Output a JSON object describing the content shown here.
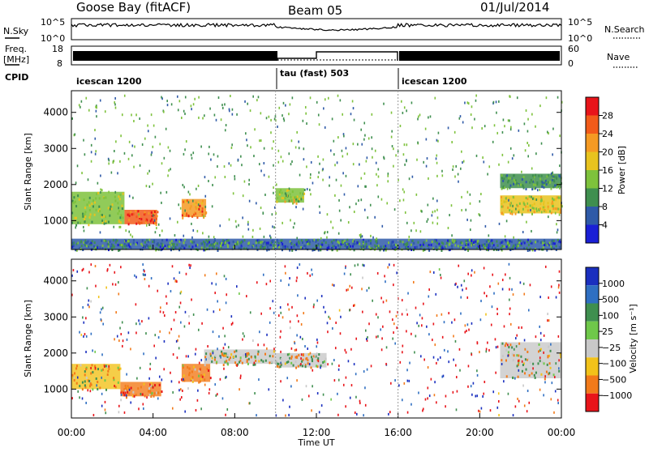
{
  "header": {
    "station": "Goose Bay (fitACF)",
    "beam": "Beam 05",
    "date": "01/Jul/2014"
  },
  "aux_panels": {
    "nsky_label": "N.Sky",
    "nsearch_label": "N.Search",
    "nsky_ticks": [
      "10^5",
      "10^0"
    ],
    "nsearch_ticks": [
      "10^5",
      "10^0"
    ],
    "freq_label_1": "Freq.",
    "freq_label_2": "[MHz]",
    "freq_ticks": [
      "18",
      "8"
    ],
    "nave_label": "Nave",
    "nave_ticks": [
      "60",
      "0"
    ],
    "cpid_label": "CPID",
    "cpid_segments": [
      {
        "label": "icescan 1200",
        "start": "00:00",
        "end": "10:00"
      },
      {
        "label": "tau (fast) 503",
        "start": "10:00",
        "end": "16:00"
      },
      {
        "label": "icescan 1200",
        "start": "16:00",
        "end": "24:00"
      }
    ]
  },
  "chart_data": [
    {
      "type": "heatmap",
      "title": "",
      "xlabel": "",
      "ylabel": "Slant Range [km]",
      "ylim": [
        200,
        4600
      ],
      "yticks": [
        "1000",
        "2000",
        "3000",
        "4000"
      ],
      "colorbar_label": "Power [dB]",
      "colorbar_ticks": [
        "28",
        "24",
        "20",
        "16",
        "12",
        "8",
        "4"
      ],
      "colorbar_colors": [
        "#e8141a",
        "#f25b1a",
        "#f59a23",
        "#e8c31e",
        "#7ec23c",
        "#3f8f4f",
        "#2f5aa8",
        "#1a1fd6"
      ],
      "regions": [
        {
          "start_h": 0.0,
          "end_h": 2.6,
          "range_km": [
            900,
            1800
          ],
          "dB": 12
        },
        {
          "start_h": 2.6,
          "end_h": 4.2,
          "range_km": [
            900,
            1300
          ],
          "dB": 24
        },
        {
          "start_h": 5.4,
          "end_h": 6.6,
          "range_km": [
            1100,
            1600
          ],
          "dB": 22
        },
        {
          "start_h": 10.0,
          "end_h": 11.4,
          "range_km": [
            1500,
            1900
          ],
          "dB": 14
        },
        {
          "start_h": 21.0,
          "end_h": 24.0,
          "range_km": [
            1200,
            1700
          ],
          "dB": 16
        },
        {
          "start_h": 21.0,
          "end_h": 24.0,
          "range_km": [
            1900,
            2300
          ],
          "dB": 8
        },
        {
          "start_h": 0.0,
          "end_h": 24.0,
          "range_km": [
            200,
            500
          ],
          "dB": 6
        }
      ]
    },
    {
      "type": "heatmap",
      "title": "",
      "xlabel": "Time UT",
      "ylabel": "Slant Range [km]",
      "ylim": [
        200,
        4600
      ],
      "yticks": [
        "1000",
        "2000",
        "3000",
        "4000"
      ],
      "xticks": [
        "00:00",
        "04:00",
        "08:00",
        "12:00",
        "16:00",
        "20:00",
        "00:00"
      ],
      "colorbar_label": "Velocity [m s⁻¹]",
      "colorbar_ticks": [
        "1000",
        "500",
        "100",
        "25",
        "−25",
        "−100",
        "−500",
        "−1000"
      ],
      "colorbar_colors": [
        "#1a2fbf",
        "#2f6fc2",
        "#3f8f4f",
        "#6fc84a",
        "#c8c8c8",
        "#f2c21a",
        "#f27a1a",
        "#e8141a"
      ],
      "regions": [
        {
          "start_h": 0.0,
          "end_h": 2.4,
          "range_km": [
            1000,
            1700
          ],
          "velocity": -50
        },
        {
          "start_h": 2.4,
          "end_h": 4.4,
          "range_km": [
            800,
            1200
          ],
          "velocity": -150
        },
        {
          "start_h": 5.4,
          "end_h": 6.8,
          "range_km": [
            1200,
            1700
          ],
          "velocity": -150
        },
        {
          "start_h": 6.5,
          "end_h": 10.0,
          "range_km": [
            1700,
            2100
          ],
          "velocity": 0
        },
        {
          "start_h": 10.0,
          "end_h": 12.5,
          "range_km": [
            1600,
            2000
          ],
          "velocity": 0
        },
        {
          "start_h": 21.0,
          "end_h": 24.0,
          "range_km": [
            1300,
            2300
          ],
          "velocity": 0
        }
      ]
    }
  ]
}
